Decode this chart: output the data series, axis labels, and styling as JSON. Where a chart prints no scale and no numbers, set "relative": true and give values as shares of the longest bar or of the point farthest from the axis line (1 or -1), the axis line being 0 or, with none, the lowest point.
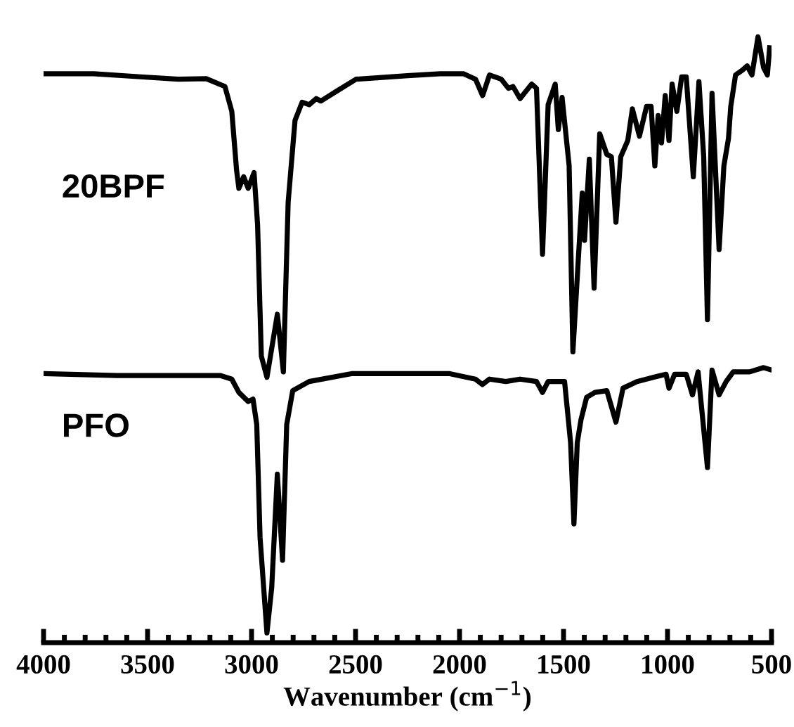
{
  "chart_data": {
    "type": "line",
    "relative": true,
    "xlabel": "Wavenumber (cm$^{−1}$)",
    "xlim": [
      4000,
      500
    ],
    "xticks": [
      4000,
      {
        "value": 3900,
        "label": null
      },
      {
        "value": 3800,
        "label": null
      },
      {
        "value": 3700,
        "label": null
      },
      {
        "value": 3600,
        "label": null
      },
      3500,
      {
        "value": 3400,
        "label": null
      },
      {
        "value": 3300,
        "label": null
      },
      {
        "value": 3200,
        "label": null
      },
      {
        "value": 3100,
        "label": null
      },
      3000,
      {
        "value": 2900,
        "label": null
      },
      {
        "value": 2800,
        "label": null
      },
      {
        "value": 2700,
        "label": null
      },
      {
        "value": 2600,
        "label": null
      },
      2500,
      {
        "value": 2400,
        "label": null
      },
      {
        "value": 2300,
        "label": null
      },
      {
        "value": 2200,
        "label": null
      },
      {
        "value": 2100,
        "label": null
      },
      2000,
      {
        "value": 1900,
        "label": null
      },
      {
        "value": 1800,
        "label": null
      },
      {
        "value": 1700,
        "label": null
      },
      {
        "value": 1600,
        "label": null
      },
      1500,
      {
        "value": 1400,
        "label": null
      },
      {
        "value": 1300,
        "label": null
      },
      {
        "value": 1200,
        "label": null
      },
      {
        "value": 1100,
        "label": null
      },
      1000,
      {
        "value": 900,
        "label": null
      },
      {
        "value": 800,
        "label": null
      },
      {
        "value": 700,
        "label": null
      },
      {
        "value": 600,
        "label": null
      },
      500
    ],
    "grid": false,
    "marker": "none",
    "line_style": "solid",
    "series": [
      {
        "name": "20BPF",
        "color": "#000000",
        "x": [
          4000,
          3759,
          3534,
          3353,
          3218,
          3128,
          3095,
          3072,
          3061,
          3038,
          3016,
          2988,
          2971,
          2953,
          2926,
          2876,
          2847,
          2824,
          2791,
          2757,
          2723,
          2689,
          2667,
          2588,
          2498,
          2250,
          2092,
          1980,
          1923,
          1889,
          1856,
          1799,
          1765,
          1743,
          1709,
          1653,
          1630,
          1601,
          1574,
          1540,
          1525,
          1507,
          1473,
          1455,
          1428,
          1410,
          1399,
          1376,
          1353,
          1326,
          1292,
          1270,
          1248,
          1225,
          1191,
          1169,
          1135,
          1101,
          1079,
          1061,
          1045,
          1029,
          1011,
          993,
          978,
          955,
          932,
          910,
          876,
          849,
          826,
          808,
          786,
          752,
          729,
          707,
          696,
          673,
          640,
          617,
          594,
          565,
          538,
          520,
          509
        ],
        "values": [
          0.939,
          0.939,
          0.934,
          0.93,
          0.931,
          0.918,
          0.877,
          0.78,
          0.75,
          0.769,
          0.75,
          0.776,
          0.69,
          0.473,
          0.438,
          0.542,
          0.447,
          0.727,
          0.862,
          0.892,
          0.888,
          0.898,
          0.894,
          0.911,
          0.93,
          0.936,
          0.939,
          0.939,
          0.93,
          0.903,
          0.937,
          0.93,
          0.915,
          0.918,
          0.898,
          0.922,
          0.915,
          0.641,
          0.888,
          0.922,
          0.847,
          0.9,
          0.787,
          0.48,
          0.638,
          0.742,
          0.664,
          0.798,
          0.585,
          0.84,
          0.806,
          0.802,
          0.694,
          0.802,
          0.829,
          0.881,
          0.836,
          0.885,
          0.885,
          0.787,
          0.87,
          0.825,
          0.903,
          0.829,
          0.922,
          0.877,
          0.934,
          0.934,
          0.769,
          0.926,
          0.802,
          0.533,
          0.907,
          0.649,
          0.787,
          0.832,
          0.885,
          0.937,
          0.945,
          0.952,
          0.937,
          1.0,
          0.949,
          0.937,
          0.982
        ]
      },
      {
        "name": "PFO",
        "color": "#000000",
        "x": [
          4000,
          3647,
          3151,
          3095,
          3061,
          3016,
          2993,
          2975,
          2959,
          2926,
          2903,
          2876,
          2851,
          2831,
          2802,
          2723,
          2520,
          2250,
          2047,
          1924,
          1890,
          1856,
          1777,
          1709,
          1630,
          1601,
          1574,
          1495,
          1466,
          1450,
          1434,
          1416,
          1389,
          1349,
          1292,
          1248,
          1214,
          1147,
          1056,
          1007,
          993,
          966,
          910,
          880,
          853,
          808,
          786,
          752,
          718,
          684,
          605,
          538,
          500
        ],
        "values": [
          0.444,
          0.441,
          0.441,
          0.435,
          0.413,
          0.398,
          0.402,
          0.36,
          0.173,
          0.016,
          0.091,
          0.278,
          0.136,
          0.36,
          0.416,
          0.431,
          0.444,
          0.444,
          0.444,
          0.435,
          0.426,
          0.435,
          0.431,
          0.435,
          0.431,
          0.413,
          0.431,
          0.431,
          0.33,
          0.196,
          0.33,
          0.368,
          0.405,
          0.413,
          0.416,
          0.364,
          0.42,
          0.431,
          0.439,
          0.443,
          0.42,
          0.443,
          0.443,
          0.409,
          0.447,
          0.289,
          0.45,
          0.409,
          0.431,
          0.447,
          0.447,
          0.454,
          0.45
        ]
      }
    ]
  }
}
